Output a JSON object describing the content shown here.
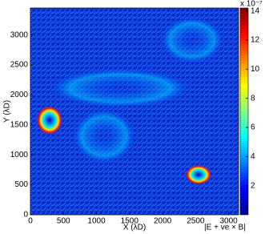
{
  "chart_data": {
    "type": "heatmap",
    "xlabel": "X (λD)",
    "ylabel": "Y (λD)",
    "colorbar_label": "|E + ve × B|",
    "colorbar_exponent": "x 10⁻⁷",
    "xlim": [
      0,
      3150
    ],
    "ylim": [
      0,
      3450
    ],
    "xticks": [
      0,
      500,
      1000,
      1500,
      2000,
      2500,
      3000
    ],
    "yticks": [
      0,
      500,
      1000,
      1500,
      2000,
      2500,
      3000
    ],
    "clim": [
      0,
      14.2
    ],
    "cticks": [
      2,
      4,
      6,
      8,
      10,
      12,
      14
    ]
  }
}
